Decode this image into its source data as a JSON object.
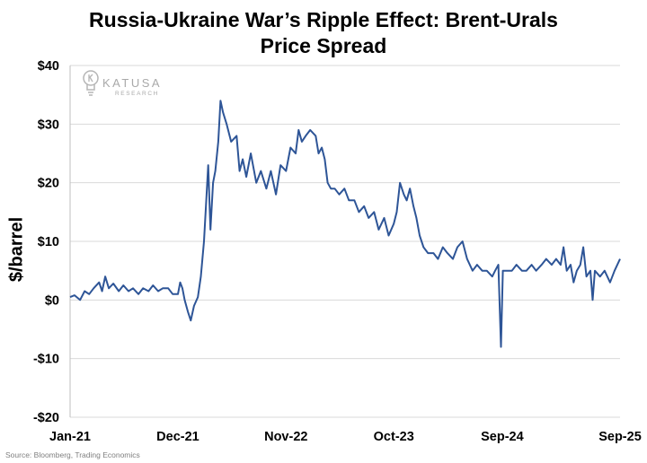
{
  "chart_data": {
    "type": "line",
    "title": "Russia-Ukraine War’s Ripple Effect: Brent-Urals\nPrice Spread",
    "ylabel": "$/barrel",
    "xlabel": "",
    "ylim": [
      -20,
      40
    ],
    "yticks": [
      {
        "value": 40,
        "label": "$40"
      },
      {
        "value": 30,
        "label": "$30"
      },
      {
        "value": 20,
        "label": "$20"
      },
      {
        "value": 10,
        "label": "$10"
      },
      {
        "value": 0,
        "label": "$0"
      },
      {
        "value": -10,
        "label": "-$10"
      },
      {
        "value": -20,
        "label": "-$20"
      }
    ],
    "xlim": [
      "2021-01-01",
      "2025-09-01"
    ],
    "xticks": [
      {
        "date": "2021-01-01",
        "label": "Jan-21"
      },
      {
        "date": "2021-12-01",
        "label": "Dec-21"
      },
      {
        "date": "2022-11-01",
        "label": "Nov-22"
      },
      {
        "date": "2023-10-01",
        "label": "Oct-23"
      },
      {
        "date": "2024-09-01",
        "label": "Sep-24"
      },
      {
        "date": "2025-09-01",
        "label": "Sep-25"
      }
    ],
    "grid": {
      "horizontal": true,
      "vertical": false
    },
    "color": "#2e5597",
    "series": [
      {
        "name": "",
        "points": [
          [
            "2021-01-01",
            0.5
          ],
          [
            "2021-01-15",
            0.8
          ],
          [
            "2021-02-01",
            0.0
          ],
          [
            "2021-02-15",
            1.5
          ],
          [
            "2021-03-01",
            1.0
          ],
          [
            "2021-03-15",
            2.0
          ],
          [
            "2021-04-01",
            3.0
          ],
          [
            "2021-04-10",
            1.5
          ],
          [
            "2021-04-20",
            4.0
          ],
          [
            "2021-05-01",
            2.0
          ],
          [
            "2021-05-15",
            2.8
          ],
          [
            "2021-06-01",
            1.5
          ],
          [
            "2021-06-15",
            2.5
          ],
          [
            "2021-07-01",
            1.5
          ],
          [
            "2021-07-15",
            2.0
          ],
          [
            "2021-08-01",
            1.0
          ],
          [
            "2021-08-15",
            2.0
          ],
          [
            "2021-09-01",
            1.5
          ],
          [
            "2021-09-15",
            2.5
          ],
          [
            "2021-10-01",
            1.5
          ],
          [
            "2021-10-15",
            2.0
          ],
          [
            "2021-11-01",
            2.0
          ],
          [
            "2021-11-15",
            1.0
          ],
          [
            "2021-12-01",
            1.0
          ],
          [
            "2021-12-08",
            3.0
          ],
          [
            "2021-12-15",
            2.0
          ],
          [
            "2021-12-22",
            0.0
          ],
          [
            "2022-01-01",
            -2.0
          ],
          [
            "2022-01-10",
            -3.5
          ],
          [
            "2022-01-20",
            -1.0
          ],
          [
            "2022-02-01",
            0.5
          ],
          [
            "2022-02-10",
            4.0
          ],
          [
            "2022-02-20",
            10.0
          ],
          [
            "2022-02-28",
            18.0
          ],
          [
            "2022-03-05",
            23.0
          ],
          [
            "2022-03-12",
            12.0
          ],
          [
            "2022-03-20",
            20.0
          ],
          [
            "2022-03-27",
            22.0
          ],
          [
            "2022-04-05",
            27.0
          ],
          [
            "2022-04-12",
            34.0
          ],
          [
            "2022-04-20",
            32.0
          ],
          [
            "2022-05-01",
            30.0
          ],
          [
            "2022-05-15",
            27.0
          ],
          [
            "2022-06-01",
            28.0
          ],
          [
            "2022-06-10",
            22.0
          ],
          [
            "2022-06-20",
            24.0
          ],
          [
            "2022-07-01",
            21.0
          ],
          [
            "2022-07-15",
            25.0
          ],
          [
            "2022-08-01",
            20.0
          ],
          [
            "2022-08-15",
            22.0
          ],
          [
            "2022-09-01",
            19.0
          ],
          [
            "2022-09-15",
            22.0
          ],
          [
            "2022-10-01",
            18.0
          ],
          [
            "2022-10-15",
            23.0
          ],
          [
            "2022-11-01",
            22.0
          ],
          [
            "2022-11-15",
            26.0
          ],
          [
            "2022-12-01",
            25.0
          ],
          [
            "2022-12-10",
            29.0
          ],
          [
            "2022-12-20",
            27.0
          ],
          [
            "2023-01-01",
            28.0
          ],
          [
            "2023-01-15",
            29.0
          ],
          [
            "2023-02-01",
            28.0
          ],
          [
            "2023-02-10",
            25.0
          ],
          [
            "2023-02-20",
            26.0
          ],
          [
            "2023-03-01",
            24.0
          ],
          [
            "2023-03-10",
            20.0
          ],
          [
            "2023-03-20",
            19.0
          ],
          [
            "2023-04-01",
            19.0
          ],
          [
            "2023-04-15",
            18.0
          ],
          [
            "2023-05-01",
            19.0
          ],
          [
            "2023-05-15",
            17.0
          ],
          [
            "2023-06-01",
            17.0
          ],
          [
            "2023-06-15",
            15.0
          ],
          [
            "2023-07-01",
            16.0
          ],
          [
            "2023-07-15",
            14.0
          ],
          [
            "2023-08-01",
            15.0
          ],
          [
            "2023-08-15",
            12.0
          ],
          [
            "2023-09-01",
            14.0
          ],
          [
            "2023-09-15",
            11.0
          ],
          [
            "2023-10-01",
            13.0
          ],
          [
            "2023-10-10",
            15.0
          ],
          [
            "2023-10-20",
            20.0
          ],
          [
            "2023-11-01",
            18.0
          ],
          [
            "2023-11-10",
            17.0
          ],
          [
            "2023-11-20",
            19.0
          ],
          [
            "2023-12-01",
            16.0
          ],
          [
            "2023-12-10",
            14.0
          ],
          [
            "2023-12-20",
            11.0
          ],
          [
            "2024-01-01",
            9.0
          ],
          [
            "2024-01-15",
            8.0
          ],
          [
            "2024-02-01",
            8.0
          ],
          [
            "2024-02-15",
            7.0
          ],
          [
            "2024-03-01",
            9.0
          ],
          [
            "2024-03-15",
            8.0
          ],
          [
            "2024-04-01",
            7.0
          ],
          [
            "2024-04-15",
            9.0
          ],
          [
            "2024-05-01",
            10.0
          ],
          [
            "2024-05-15",
            7.0
          ],
          [
            "2024-06-01",
            5.0
          ],
          [
            "2024-06-15",
            6.0
          ],
          [
            "2024-07-01",
            5.0
          ],
          [
            "2024-07-15",
            5.0
          ],
          [
            "2024-08-01",
            4.0
          ],
          [
            "2024-08-10",
            5.0
          ],
          [
            "2024-08-20",
            6.0
          ],
          [
            "2024-08-28",
            -8.0
          ],
          [
            "2024-09-03",
            5.0
          ],
          [
            "2024-09-15",
            5.0
          ],
          [
            "2024-10-01",
            5.0
          ],
          [
            "2024-10-15",
            6.0
          ],
          [
            "2024-11-01",
            5.0
          ],
          [
            "2024-11-15",
            5.0
          ],
          [
            "2024-12-01",
            6.0
          ],
          [
            "2024-12-15",
            5.0
          ],
          [
            "2025-01-01",
            6.0
          ],
          [
            "2025-01-15",
            7.0
          ],
          [
            "2025-02-01",
            6.0
          ],
          [
            "2025-02-15",
            7.0
          ],
          [
            "2025-03-01",
            6.0
          ],
          [
            "2025-03-10",
            9.0
          ],
          [
            "2025-03-20",
            5.0
          ],
          [
            "2025-04-01",
            6.0
          ],
          [
            "2025-04-10",
            3.0
          ],
          [
            "2025-04-20",
            5.0
          ],
          [
            "2025-05-01",
            6.0
          ],
          [
            "2025-05-10",
            9.0
          ],
          [
            "2025-05-20",
            4.0
          ],
          [
            "2025-06-01",
            5.0
          ],
          [
            "2025-06-08",
            0.0
          ],
          [
            "2025-06-15",
            5.0
          ],
          [
            "2025-07-01",
            4.0
          ],
          [
            "2025-07-15",
            5.0
          ],
          [
            "2025-08-01",
            3.0
          ],
          [
            "2025-08-15",
            5.0
          ],
          [
            "2025-09-01",
            7.0
          ]
        ]
      }
    ]
  },
  "source_note": "Source: Bloomberg, Trading Economics",
  "logo": {
    "name": "KATUSA",
    "sub": "RESEARCH"
  }
}
